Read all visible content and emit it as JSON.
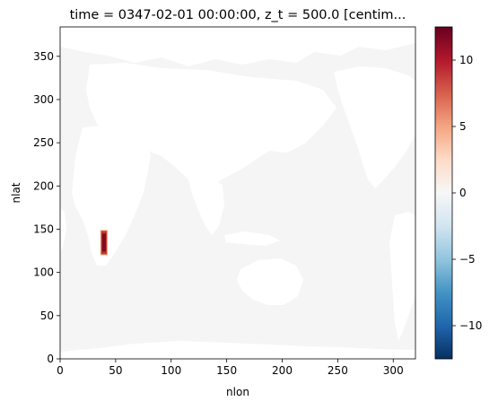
{
  "chart_data": {
    "type": "heatmap",
    "title": "time = 0347-02-01 00:00:00, z_t = 500.0 [centim...",
    "xlabel": "nlon",
    "ylabel": "nlat",
    "xlim": [
      0,
      320
    ],
    "ylim": [
      0,
      384
    ],
    "xticks": [
      0,
      50,
      100,
      150,
      200,
      250,
      300
    ],
    "yticks": [
      0,
      50,
      100,
      150,
      200,
      250,
      300,
      350
    ],
    "colorbar": {
      "vmin": -12.5,
      "vmax": 12.5,
      "cmap": "RdBu_r",
      "ticks": [
        -10,
        -5,
        0,
        5,
        10
      ],
      "tick_labels": [
        "−10",
        "−5",
        "0",
        "5",
        "10"
      ]
    },
    "background": {
      "value": 0,
      "description": "ocean grid cells near zero"
    },
    "anomaly_patch": {
      "nlon_range": [
        37,
        42
      ],
      "nlat_range": [
        121,
        148
      ],
      "values": [
        {
          "nlon": 37,
          "nlat": 121,
          "v": 6
        },
        {
          "nlon": 37,
          "nlat": 148,
          "v": 7
        },
        {
          "nlon": 39,
          "nlat": 135,
          "v": 12.5
        },
        {
          "nlon": 42,
          "nlat": 142,
          "v": 9
        }
      ]
    },
    "colors": {
      "land": "#ffffff",
      "ocean_zero": "#f5f5f5",
      "patch_core": "#7f0b22",
      "patch_edge": "#c0392b",
      "patch_fringe": "#f1a484"
    }
  }
}
